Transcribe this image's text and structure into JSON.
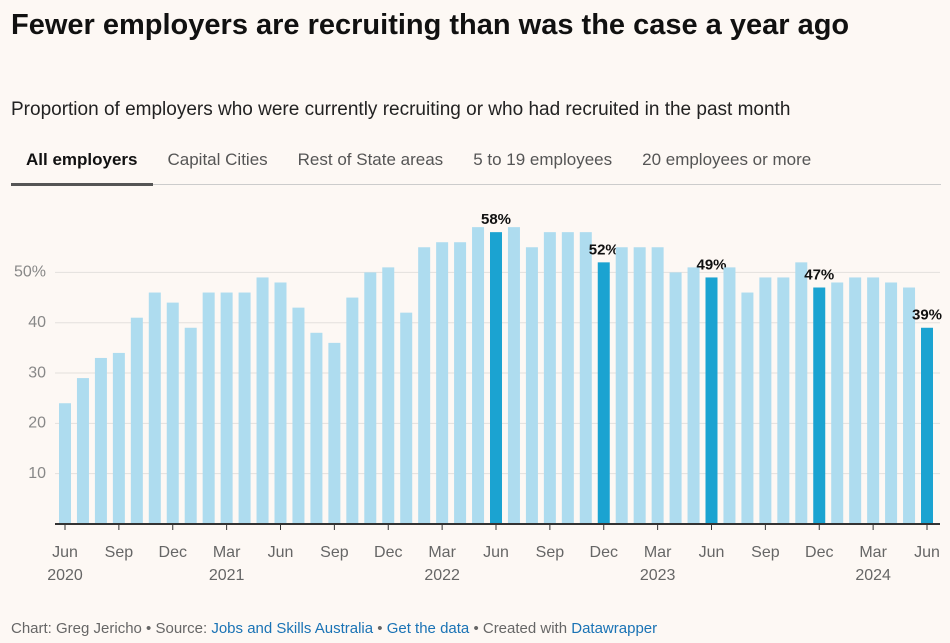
{
  "header": {
    "title": "Fewer employers are recruiting than was the case a year ago",
    "subtitle": "Proportion of employers who were currently recruiting or who had recruited in the past month"
  },
  "tabs": [
    "All employers",
    "Capital Cities",
    "Rest of State areas",
    "5 to 19 employees",
    "20 employees or more"
  ],
  "chart_data": {
    "type": "bar",
    "categories": [
      "Jun",
      null,
      null,
      "Sep",
      null,
      null,
      "Dec",
      null,
      null,
      "Mar",
      null,
      null,
      "Jun",
      null,
      null,
      "Sep",
      null,
      null,
      "Dec",
      null,
      null,
      "Mar",
      null,
      null,
      "Jun",
      null,
      null,
      "Sep",
      null,
      null,
      "Dec",
      null,
      null,
      "Mar",
      null,
      null,
      "Jun",
      null,
      null,
      "Sep",
      null,
      null,
      "Dec",
      null,
      null,
      "Mar",
      null,
      null,
      "Jun"
    ],
    "year_labels": [
      "2020",
      null,
      null,
      null,
      null,
      null,
      null,
      null,
      null,
      "2021",
      null,
      null,
      null,
      null,
      null,
      null,
      null,
      null,
      null,
      null,
      null,
      "2022",
      null,
      null,
      null,
      null,
      null,
      null,
      null,
      null,
      null,
      null,
      null,
      "2023",
      null,
      null,
      null,
      null,
      null,
      null,
      null,
      null,
      null,
      null,
      null,
      "2024",
      null,
      null,
      null
    ],
    "values": [
      24,
      29,
      33,
      34,
      41,
      46,
      44,
      39,
      46,
      46,
      46,
      49,
      48,
      43,
      38,
      36,
      45,
      50,
      51,
      42,
      55,
      56,
      56,
      59,
      58,
      59,
      55,
      58,
      58,
      58,
      52,
      55,
      55,
      55,
      50,
      51,
      49,
      51,
      46,
      49,
      49,
      52,
      47,
      48,
      49,
      49,
      48,
      47,
      39
    ],
    "value_labels": [
      null,
      null,
      null,
      null,
      null,
      null,
      null,
      null,
      null,
      null,
      null,
      null,
      null,
      null,
      null,
      null,
      null,
      null,
      null,
      null,
      null,
      null,
      null,
      null,
      "58%",
      null,
      null,
      null,
      null,
      null,
      "52%",
      null,
      null,
      null,
      null,
      null,
      "49%",
      null,
      null,
      null,
      null,
      null,
      "47%",
      null,
      null,
      null,
      null,
      null,
      "39%"
    ],
    "color": "#aedcef",
    "highlight_color": "#1ba3d1",
    "ylim": [
      0,
      63
    ],
    "yticks": [
      10,
      20,
      30,
      40,
      {
        "value": 50,
        "label": "50%"
      }
    ],
    "grid": true
  },
  "footer": {
    "credit": "Chart: Greg Jericho • Source:",
    "source": "Jobs and Skills Australia",
    "sep": "•",
    "data_link": "Get the data",
    "created": "• Created with",
    "tool": "Datawrapper"
  }
}
